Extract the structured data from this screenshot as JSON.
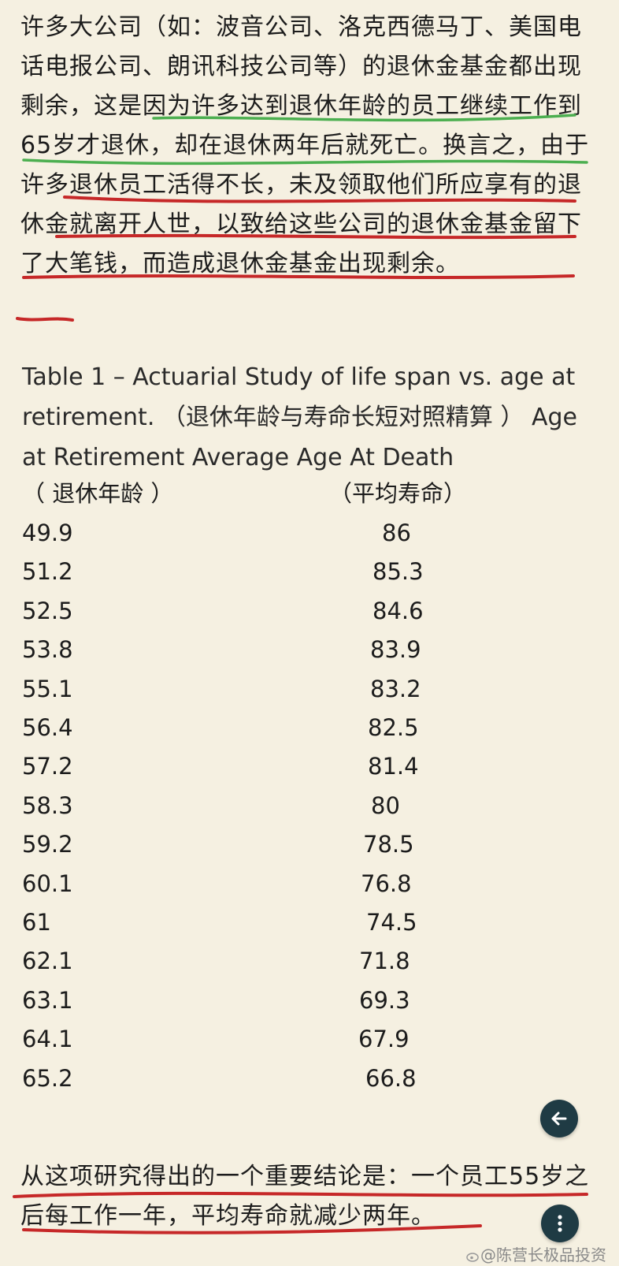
{
  "intro": "许多大公司（如：波音公司、洛克西德马丁、美国电话电报公司、朗讯科技公司等）的退休金基金都出现剩余，这是因为许多达到退休年龄的员工继续工作到65岁才退休，却在退休两年后就死亡。换言之，由于许多退休员工活得不长，未及领取他们所应享有的退休金就离开人世，以致给这些公司的退休金基金留下了大笔钱，而造成退休金基金出现剩余。",
  "table": {
    "caption": "Table 1 – Actuarial Study of life span vs. age at retirement. （退休年龄与寿命长短对照精算 ） Age at Retirement     Average Age At Death",
    "col1_cn": "（ 退休年龄 ）",
    "col2_cn": "（平均寿命）",
    "rows": [
      {
        "age": "49.9",
        "death": "86"
      },
      {
        "age": "51.2",
        "death": "85.3"
      },
      {
        "age": "52.5",
        "death": "84.6"
      },
      {
        "age": "53.8",
        "death": "83.9"
      },
      {
        "age": "55.1",
        "death": "83.2"
      },
      {
        "age": "56.4",
        "death": "82.5"
      },
      {
        "age": "57.2",
        "death": "81.4"
      },
      {
        "age": "58.3",
        "death": "80"
      },
      {
        "age": "59.2",
        "death": "78.5"
      },
      {
        "age": "60.1",
        "death": "76.8"
      },
      {
        "age": "61",
        "death": "74.5"
      },
      {
        "age": "62.1",
        "death": "71.8"
      },
      {
        "age": "63.1",
        "death": "69.3"
      },
      {
        "age": "64.1",
        "death": "67.9"
      },
      {
        "age": "65.2",
        "death": "66.8"
      }
    ]
  },
  "conclusion": "从这项研究得出的一个重要结论是：一个员工55岁之后每工作一年，平均寿命就减少两年。",
  "watermark": "@陈营长极品投资",
  "icons": {
    "back": "arrow-left-icon",
    "more": "more-vertical-icon",
    "weibo": "weibo-logo-icon"
  },
  "colors": {
    "background": "#f5f0e1",
    "green_underline": "#4caf50",
    "red_underline": "#c62828",
    "fab": "#1f3b44"
  }
}
